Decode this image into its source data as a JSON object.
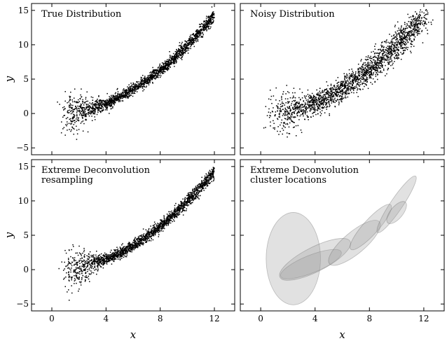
{
  "chart_data": [
    {
      "type": "scatter",
      "title": "True Distribution",
      "kind": "true",
      "xlabel": "",
      "ylabel": "y",
      "xlim": [
        -1.5,
        13.5
      ],
      "ylim": [
        -6,
        16
      ],
      "xticks": [
        0,
        4,
        8,
        12
      ],
      "yticks": [
        -5,
        0,
        5,
        10,
        15
      ],
      "grid": false,
      "marker_color": "#000000",
      "n_points": 2000
    },
    {
      "type": "scatter",
      "title": "Noisy Distribution",
      "kind": "noisy",
      "xlabel": "",
      "ylabel": "",
      "xlim": [
        -1.5,
        13.5
      ],
      "ylim": [
        -6,
        16
      ],
      "xticks": [
        0,
        4,
        8,
        12
      ],
      "yticks": [
        -5,
        0,
        5,
        10,
        15
      ],
      "grid": false,
      "marker_color": "#000000",
      "n_points": 2000
    },
    {
      "type": "scatter",
      "title": [
        "Extreme Deconvolution",
        "resampling"
      ],
      "kind": "true",
      "xlabel": "x",
      "ylabel": "y",
      "xlim": [
        -1.5,
        13.5
      ],
      "ylim": [
        -6,
        16
      ],
      "xticks": [
        0,
        4,
        8,
        12
      ],
      "yticks": [
        -5,
        0,
        5,
        10,
        15
      ],
      "grid": false,
      "marker_color": "#000000",
      "n_points": 2000
    },
    {
      "type": "ellipses",
      "title": [
        "Extreme Deconvolution",
        "cluster locations"
      ],
      "xlabel": "x",
      "ylabel": "",
      "xlim": [
        -1.5,
        13.5
      ],
      "ylim": [
        -6,
        16
      ],
      "xticks": [
        0,
        4,
        8,
        12
      ],
      "yticks": [
        -5,
        0,
        5,
        10,
        15
      ],
      "grid": false,
      "fill_color": "#9a9a9a",
      "components": [
        {
          "cx": 2.4,
          "cy": 1.6,
          "rx": 2.0,
          "ry": 3.4,
          "angle": 0
        },
        {
          "cx": 3.7,
          "cy": 0.8,
          "rx": 2.4,
          "ry": 0.65,
          "angle": 22
        },
        {
          "cx": 4.0,
          "cy": 1.5,
          "rx": 2.9,
          "ry": 0.9,
          "angle": 27
        },
        {
          "cx": 6.9,
          "cy": 3.9,
          "rx": 2.4,
          "ry": 0.8,
          "angle": 40
        },
        {
          "cx": 8.1,
          "cy": 6.2,
          "rx": 2.2,
          "ry": 0.55,
          "angle": 48
        },
        {
          "cx": 10.0,
          "cy": 9.5,
          "rx": 2.5,
          "ry": 0.45,
          "angle": 56
        },
        {
          "cx": 10.0,
          "cy": 8.3,
          "rx": 1.0,
          "ry": 0.45,
          "angle": 50
        }
      ]
    }
  ]
}
